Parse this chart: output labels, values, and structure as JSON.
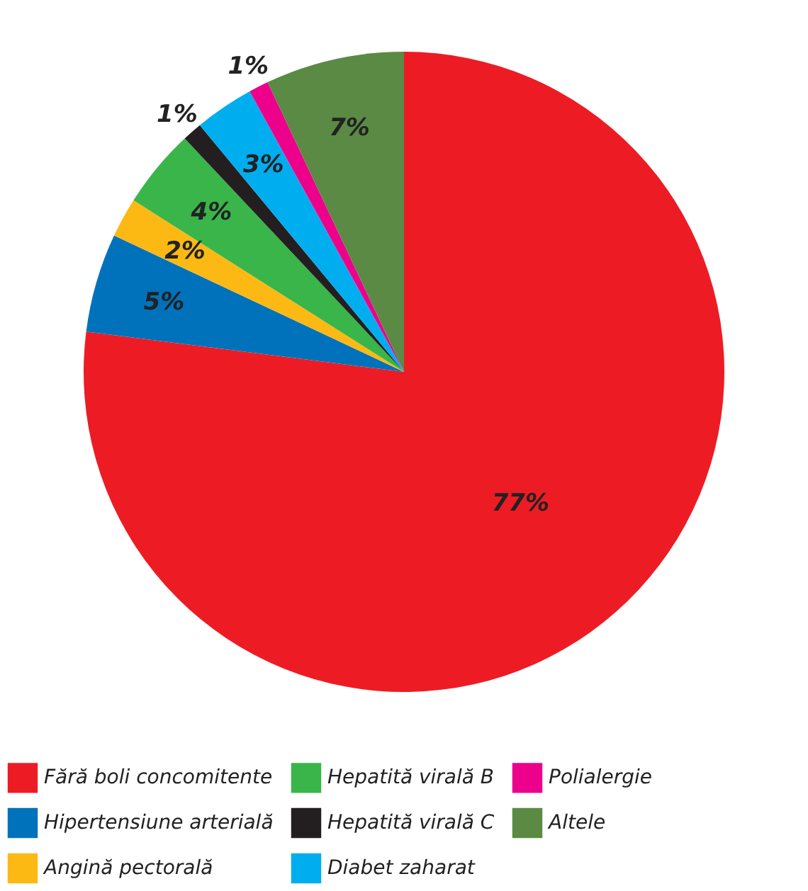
{
  "chart_data": {
    "type": "pie",
    "categories": [
      "Fără boli concomitente",
      "Hipertensiune arterială",
      "Angină pectorală",
      "Hepatită virală B",
      "Hepatită virală C",
      "Diabet zaharat",
      "Polialergie",
      "Altele"
    ],
    "values": [
      77,
      5,
      2,
      4,
      1,
      3,
      1,
      7
    ],
    "value_labels": [
      "77%",
      "5%",
      "2%",
      "4%",
      "1%",
      "3%",
      "1%",
      "7%"
    ],
    "colors": [
      "#ed1c24",
      "#0072bc",
      "#fdb913",
      "#39b54a",
      "#231f20",
      "#00aeef",
      "#ec008c",
      "#5a8a44"
    ],
    "legend": "bottom"
  }
}
